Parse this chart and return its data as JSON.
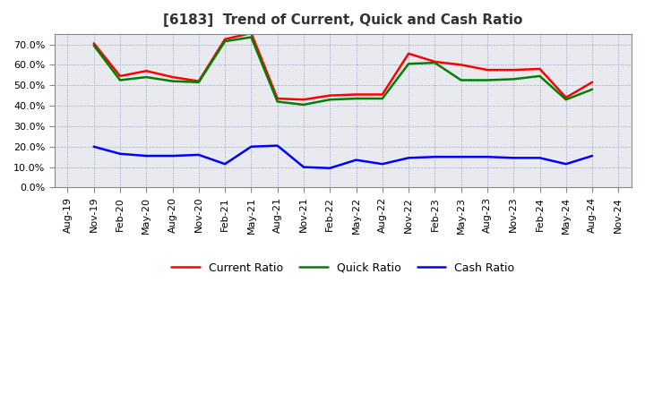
{
  "title": "[6183]  Trend of Current, Quick and Cash Ratio",
  "x_labels": [
    "Aug-19",
    "Nov-19",
    "Feb-20",
    "May-20",
    "Aug-20",
    "Nov-20",
    "Feb-21",
    "May-21",
    "Aug-21",
    "Nov-21",
    "Feb-22",
    "May-22",
    "Aug-22",
    "Nov-22",
    "Feb-23",
    "May-23",
    "Aug-23",
    "Nov-23",
    "Feb-24",
    "May-24",
    "Aug-24",
    "Nov-24"
  ],
  "current_ratio": [
    null,
    70.5,
    54.5,
    57.0,
    54.0,
    52.0,
    72.5,
    75.5,
    43.5,
    43.0,
    45.0,
    45.5,
    45.5,
    65.5,
    61.5,
    60.0,
    57.5,
    57.5,
    58.0,
    44.0,
    51.5,
    null
  ],
  "quick_ratio": [
    null,
    69.5,
    52.5,
    54.0,
    52.0,
    51.5,
    71.5,
    73.5,
    42.0,
    40.5,
    43.0,
    43.5,
    43.5,
    60.5,
    61.0,
    52.5,
    52.5,
    53.0,
    54.5,
    43.0,
    48.0,
    null
  ],
  "cash_ratio": [
    null,
    20.0,
    16.5,
    15.5,
    15.5,
    16.0,
    11.5,
    20.0,
    20.5,
    10.0,
    9.5,
    13.5,
    11.5,
    14.5,
    15.0,
    15.0,
    15.0,
    14.5,
    14.5,
    11.5,
    15.5,
    null
  ],
  "current_color": "#ff0000",
  "quick_color": "#008000",
  "cash_color": "#0000ff",
  "ylim": [
    0,
    75
  ],
  "yticks": [
    0,
    10,
    20,
    30,
    40,
    50,
    60,
    70
  ],
  "background_color": "#ffffff",
  "plot_bg_color": "#e8eaf0",
  "grid_color": "#9999bb",
  "line_width": 1.8,
  "title_color": "#333333",
  "title_fontsize": 11,
  "tick_fontsize": 8
}
